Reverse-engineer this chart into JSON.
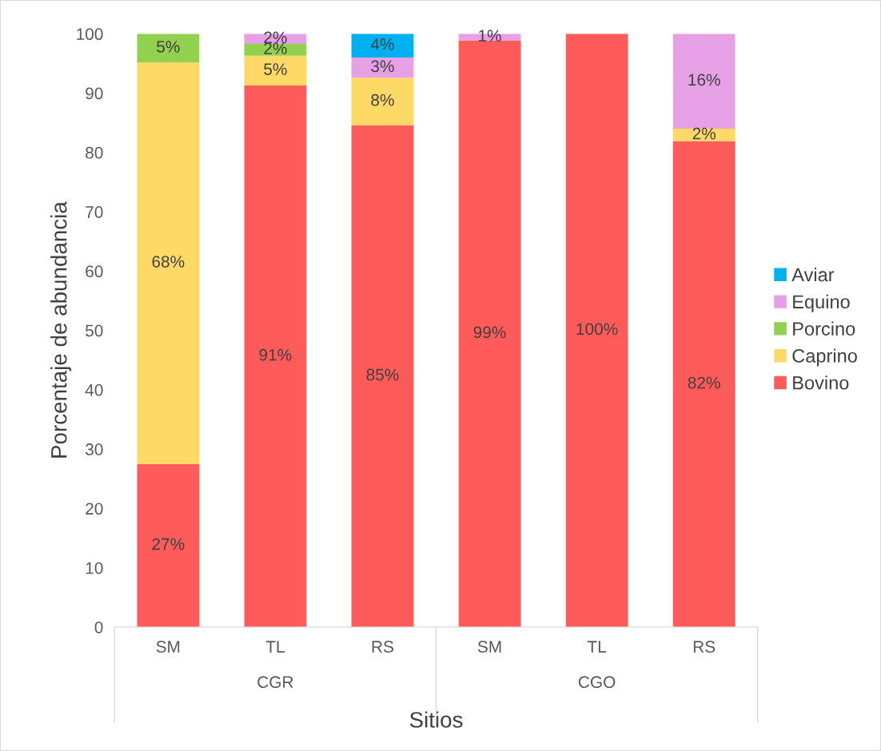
{
  "chart_data": {
    "type": "bar",
    "stacked": true,
    "xlabel": "Sitios",
    "ylabel": "Porcentaje de abundancia",
    "categories": [
      "SM",
      "TL",
      "RS",
      "SM",
      "TL",
      "RS"
    ],
    "annotations": [
      "CGR",
      "CGO"
    ],
    "series": [
      {
        "name": "Bovino",
        "color": "#ff5b5b",
        "values": [
          27.5,
          91.3,
          84.6,
          98.9,
          100,
          81.9
        ],
        "value_labels": [
          "27%",
          "91%",
          "85%",
          "99%",
          "100%",
          "82%"
        ]
      },
      {
        "name": "Caprino",
        "color": "#ffd966",
        "values": [
          67.7,
          5.0,
          8.0,
          null,
          null,
          2.1
        ],
        "value_labels": [
          "68%",
          "5%",
          "8%",
          null,
          null,
          "2%"
        ]
      },
      {
        "name": "Porcino",
        "color": "#92d050",
        "values": [
          4.8,
          2.0,
          null,
          null,
          null,
          null
        ],
        "value_labels": [
          "5%",
          "2%",
          null,
          null,
          null,
          null
        ]
      },
      {
        "name": "Equino",
        "color": "#e6a0e6",
        "values": [
          null,
          1.7,
          3.4,
          1.1,
          null,
          16.0
        ],
        "value_labels": [
          null,
          "2%",
          "3%",
          "1%",
          null,
          "16%"
        ]
      },
      {
        "name": "Aviar",
        "color": "#00b0f0",
        "values": [
          null,
          null,
          4.0,
          null,
          null,
          null
        ],
        "value_labels": [
          null,
          null,
          "4%",
          null,
          null,
          null
        ]
      }
    ],
    "ylim": [
      0,
      100
    ],
    "yticks": [
      0,
      10,
      20,
      30,
      40,
      50,
      60,
      70,
      80,
      90,
      100
    ],
    "grid": false,
    "legend": "right"
  }
}
